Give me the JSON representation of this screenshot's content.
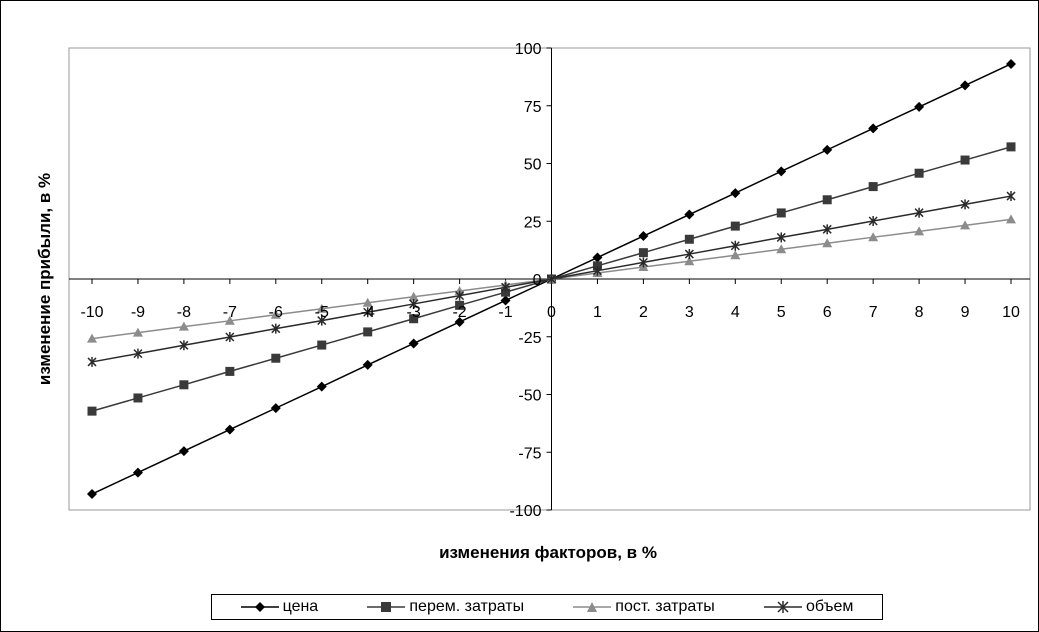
{
  "colors": {
    "price": "#000000",
    "var_costs": "#3a3a3a",
    "fixed_costs": "#8c8c8c",
    "volume": "#2a2a2a",
    "plot_border": "#999999"
  },
  "chart_data": {
    "type": "line",
    "xlabel": "изменения факторов, в %",
    "ylabel": "изменение прибыли, в %",
    "xlim": [
      -10,
      10
    ],
    "ylim": [
      -100,
      100
    ],
    "x_tick_labels": [
      "-10",
      "-9",
      "-8",
      "-7",
      "-6",
      "-5",
      "-4",
      "-3",
      "-2",
      "-1",
      "0",
      "1",
      "2",
      "3",
      "4",
      "5",
      "6",
      "7",
      "8",
      "9",
      "10"
    ],
    "y_tick_labels": [
      "100",
      "75",
      "50",
      "25",
      "0",
      "-25",
      "-50",
      "-75",
      "-100"
    ],
    "y_ticks": [
      100,
      75,
      50,
      25,
      0,
      -25,
      -50,
      -75,
      -100
    ],
    "grid": false,
    "legend_position": "bottom",
    "x": [
      -10,
      -9,
      -8,
      -7,
      -6,
      -5,
      -4,
      -3,
      -2,
      -1,
      0,
      1,
      2,
      3,
      4,
      5,
      6,
      7,
      8,
      9,
      10
    ],
    "series": [
      {
        "name": "цена",
        "marker": "diamond",
        "values": [
          -93.1,
          -83.8,
          -74.5,
          -65.2,
          -55.9,
          -46.6,
          -37.2,
          -27.9,
          -18.6,
          -9.3,
          0,
          9.3,
          18.6,
          27.9,
          37.2,
          46.6,
          55.9,
          65.2,
          74.5,
          83.8,
          93.1
        ]
      },
      {
        "name": "перем. затраты",
        "marker": "square",
        "values": [
          -57.2,
          -51.5,
          -45.8,
          -40.0,
          -34.3,
          -28.6,
          -22.9,
          -17.2,
          -11.4,
          -5.7,
          0,
          5.7,
          11.4,
          17.2,
          22.9,
          28.6,
          34.3,
          40.0,
          45.8,
          51.5,
          57.2
        ]
      },
      {
        "name": "пост. затраты",
        "marker": "triangle",
        "values": [
          -25.8,
          -23.2,
          -20.6,
          -18.1,
          -15.5,
          -12.9,
          -10.3,
          -7.7,
          -5.2,
          -2.6,
          0,
          2.6,
          5.2,
          7.7,
          10.3,
          12.9,
          15.5,
          18.1,
          20.6,
          23.2,
          25.8
        ]
      },
      {
        "name": "объем",
        "marker": "star",
        "values": [
          -35.9,
          -32.3,
          -28.7,
          -25.1,
          -21.5,
          -18.0,
          -14.4,
          -10.8,
          -7.2,
          -3.6,
          0,
          3.6,
          7.2,
          10.8,
          14.4,
          18.0,
          21.5,
          25.1,
          28.7,
          32.3,
          35.9
        ]
      }
    ]
  }
}
